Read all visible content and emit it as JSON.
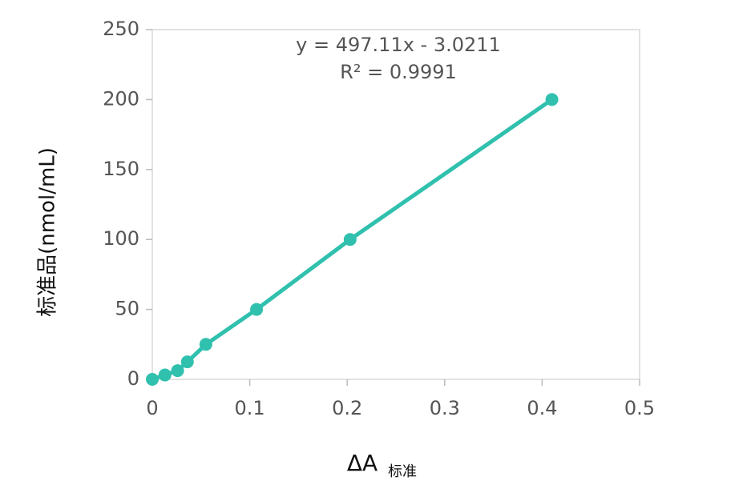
{
  "chart_data": {
    "type": "line",
    "annotations": [
      "y = 497.11x - 3.0211",
      "R² = 0.9991"
    ],
    "x_label": "ΔA",
    "x_label_subscript": "标准",
    "y_label": "标准品(nmol/mL)",
    "x": [
      0,
      0.013,
      0.026,
      0.036,
      0.055,
      0.107,
      0.203,
      0.41
    ],
    "series": [
      {
        "color": "#30c0ae",
        "values": [
          0,
          3.125,
          6.25,
          12.5,
          25,
          50,
          100,
          200
        ]
      }
    ],
    "xlim": [
      0,
      0.5
    ],
    "xticks": [
      0,
      0.1,
      0.2,
      0.3,
      0.4,
      0.5
    ],
    "ylim": [
      0,
      250
    ],
    "yticks": [
      0,
      50,
      100,
      150,
      200,
      250
    ],
    "grid": false
  }
}
